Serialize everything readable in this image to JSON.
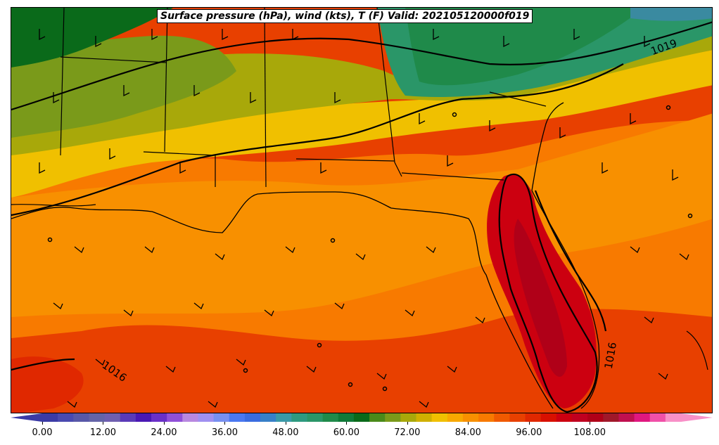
{
  "title": "Surface pressure (hPa), wind (kts), T (F) Valid: 202105120000f019",
  "isobar_labels": [
    "1019",
    "1016",
    "1016"
  ],
  "colorbar": {
    "ticks": [
      "0.00",
      "12.00",
      "24.00",
      "36.00",
      "48.00",
      "60.00",
      "72.00",
      "84.00",
      "96.00",
      "108.00"
    ],
    "tick_values": [
      0,
      12,
      24,
      36,
      48,
      60,
      72,
      84,
      96,
      108
    ],
    "min": -3,
    "max": 126,
    "step": 3,
    "colors": [
      "#3b3ba6",
      "#4a4ab0",
      "#5858a8",
      "#6464a8",
      "#6f5fb0",
      "#5a3ab8",
      "#4a18b4",
      "#6a30c8",
      "#9050d8",
      "#b888e0",
      "#a090f0",
      "#7890f0",
      "#4a78f0",
      "#3a6ce0",
      "#3880c8",
      "#3a9aa8",
      "#2e9a80",
      "#2a9668",
      "#1f8a4a",
      "#0f7a38",
      "#0a6a1a",
      "#4a8a1a",
      "#7a9a1a",
      "#a8a80a",
      "#d0b000",
      "#f0c000",
      "#f8a800",
      "#f89000",
      "#f87a00",
      "#f05a00",
      "#e84000",
      "#e02800",
      "#d81000",
      "#cc0010",
      "#c00020",
      "#b00018",
      "#a0182a",
      "#c01050",
      "#e01880",
      "#f050a8",
      "#f890c8"
    ]
  },
  "map_colors": {
    "coast": "#000000",
    "green_dark": "#0a6a1a",
    "green_mid": "#2a9668",
    "olive": "#7a9a1a",
    "olive_light": "#a8a80a",
    "yellow": "#f0c000",
    "orange": "#f89000",
    "orange_dark": "#f06a00",
    "red_orange": "#e84000",
    "red": "#cc0010",
    "teal": "#3a8aa0"
  }
}
